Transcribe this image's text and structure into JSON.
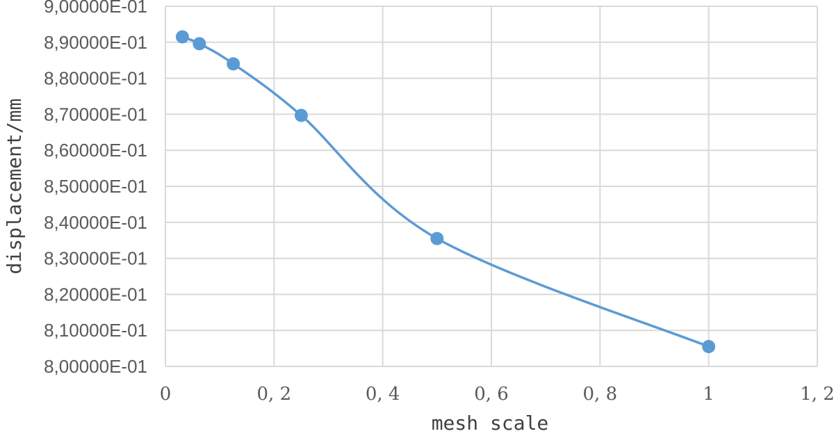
{
  "chart_data": {
    "type": "scatter",
    "style": "smooth-line-with-markers",
    "xlabel": "mesh scale",
    "ylabel": "displacement/mm",
    "xlim": [
      0,
      1.2
    ],
    "ylim": [
      0.8,
      0.9
    ],
    "x_ticks": [
      0,
      0.2,
      0.4,
      0.6,
      0.8,
      1,
      1.2
    ],
    "x_tick_labels": [
      "0",
      "0, 2",
      "0, 4",
      "0, 6",
      "0, 8",
      "1",
      "1, 2"
    ],
    "y_ticks": [
      0.8,
      0.81,
      0.82,
      0.83,
      0.84,
      0.85,
      0.86,
      0.87,
      0.88,
      0.89,
      0.9
    ],
    "y_tick_labels": [
      "8,00000E-01",
      "8,10000E-01",
      "8,20000E-01",
      "8,30000E-01",
      "8,40000E-01",
      "8,50000E-01",
      "8,60000E-01",
      "8,70000E-01",
      "8,80000E-01",
      "8,90000E-01",
      "9,00000E-01"
    ],
    "grid": true,
    "legend": "none",
    "series": [
      {
        "color": "#5b9bd5",
        "points": [
          {
            "x": 0.03125,
            "y": 0.8915
          },
          {
            "x": 0.0625,
            "y": 0.8896
          },
          {
            "x": 0.125,
            "y": 0.884
          },
          {
            "x": 0.25,
            "y": 0.8697
          },
          {
            "x": 0.5,
            "y": 0.8355
          },
          {
            "x": 1.0,
            "y": 0.8055
          }
        ]
      }
    ]
  }
}
